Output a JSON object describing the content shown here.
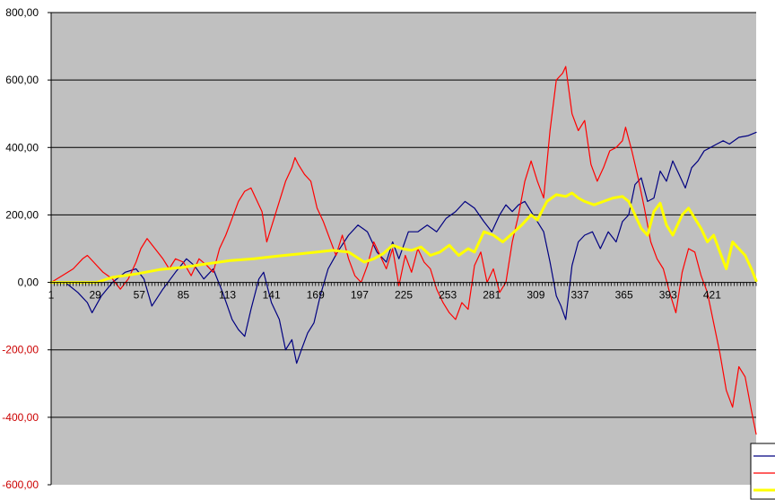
{
  "chart_data": {
    "type": "line",
    "title": "",
    "xlabel": "",
    "ylabel": "",
    "x_range": [
      1,
      449
    ],
    "ylim": [
      -600,
      800
    ],
    "y_ticks": [
      {
        "value": 800,
        "label": "800,00"
      },
      {
        "value": 600,
        "label": "600,00"
      },
      {
        "value": 400,
        "label": "400,00"
      },
      {
        "value": 200,
        "label": "200,00"
      },
      {
        "value": 0,
        "label": "0,00"
      },
      {
        "value": -200,
        "label": "-200,00"
      },
      {
        "value": -400,
        "label": "-400,00"
      },
      {
        "value": -600,
        "label": "-600,00"
      }
    ],
    "x_ticks": [
      {
        "value": 1,
        "label": "1"
      },
      {
        "value": 29,
        "label": "29"
      },
      {
        "value": 57,
        "label": "57"
      },
      {
        "value": 85,
        "label": "85"
      },
      {
        "value": 113,
        "label": "113"
      },
      {
        "value": 141,
        "label": "141"
      },
      {
        "value": 169,
        "label": "169"
      },
      {
        "value": 197,
        "label": "197"
      },
      {
        "value": 225,
        "label": "225"
      },
      {
        "value": 253,
        "label": "253"
      },
      {
        "value": 281,
        "label": "281"
      },
      {
        "value": 309,
        "label": "309"
      },
      {
        "value": 337,
        "label": "337"
      },
      {
        "value": 365,
        "label": "365"
      },
      {
        "value": 393,
        "label": "393"
      },
      {
        "value": 421,
        "label": "421"
      }
    ],
    "grid": "horizontal",
    "legend_position": "bottom-right",
    "colors": {
      "plot_background": "#c0c0c0",
      "gridline": "#000000",
      "positive_tick_label": "#000000",
      "negative_tick_label": "#cc0000"
    },
    "series": [
      {
        "color": "#000080",
        "stroke_width": 1.2,
        "points": [
          [
            1,
            0
          ],
          [
            10,
            0
          ],
          [
            18,
            -30
          ],
          [
            24,
            -60
          ],
          [
            27,
            -90
          ],
          [
            33,
            -40
          ],
          [
            40,
            0
          ],
          [
            48,
            30
          ],
          [
            55,
            40
          ],
          [
            60,
            10
          ],
          [
            65,
            -70
          ],
          [
            72,
            -20
          ],
          [
            80,
            30
          ],
          [
            87,
            70
          ],
          [
            92,
            50
          ],
          [
            98,
            10
          ],
          [
            104,
            40
          ],
          [
            110,
            -30
          ],
          [
            116,
            -110
          ],
          [
            120,
            -140
          ],
          [
            124,
            -160
          ],
          [
            128,
            -80
          ],
          [
            133,
            10
          ],
          [
            136,
            30
          ],
          [
            141,
            -60
          ],
          [
            146,
            -110
          ],
          [
            150,
            -200
          ],
          [
            154,
            -170
          ],
          [
            157,
            -240
          ],
          [
            160,
            -200
          ],
          [
            164,
            -150
          ],
          [
            168,
            -120
          ],
          [
            172,
            -40
          ],
          [
            177,
            40
          ],
          [
            183,
            90
          ],
          [
            190,
            140
          ],
          [
            196,
            170
          ],
          [
            202,
            150
          ],
          [
            208,
            90
          ],
          [
            214,
            60
          ],
          [
            218,
            120
          ],
          [
            222,
            70
          ],
          [
            228,
            150
          ],
          [
            234,
            150
          ],
          [
            240,
            170
          ],
          [
            246,
            150
          ],
          [
            252,
            190
          ],
          [
            258,
            210
          ],
          [
            264,
            240
          ],
          [
            270,
            220
          ],
          [
            276,
            180
          ],
          [
            281,
            150
          ],
          [
            286,
            200
          ],
          [
            290,
            230
          ],
          [
            294,
            210
          ],
          [
            298,
            230
          ],
          [
            302,
            240
          ],
          [
            306,
            210
          ],
          [
            310,
            180
          ],
          [
            314,
            150
          ],
          [
            318,
            60
          ],
          [
            322,
            -40
          ],
          [
            325,
            -70
          ],
          [
            328,
            -110
          ],
          [
            332,
            50
          ],
          [
            336,
            120
          ],
          [
            340,
            140
          ],
          [
            345,
            150
          ],
          [
            350,
            100
          ],
          [
            355,
            150
          ],
          [
            360,
            120
          ],
          [
            364,
            180
          ],
          [
            368,
            200
          ],
          [
            372,
            290
          ],
          [
            376,
            310
          ],
          [
            380,
            240
          ],
          [
            384,
            250
          ],
          [
            388,
            330
          ],
          [
            392,
            300
          ],
          [
            396,
            360
          ],
          [
            400,
            320
          ],
          [
            404,
            280
          ],
          [
            408,
            340
          ],
          [
            412,
            360
          ],
          [
            416,
            390
          ],
          [
            420,
            400
          ],
          [
            424,
            410
          ],
          [
            428,
            420
          ],
          [
            432,
            410
          ],
          [
            438,
            430
          ],
          [
            444,
            435
          ],
          [
            449,
            445
          ]
        ]
      },
      {
        "color": "#ff0000",
        "stroke_width": 1.2,
        "points": [
          [
            1,
            0
          ],
          [
            8,
            20
          ],
          [
            15,
            40
          ],
          [
            21,
            70
          ],
          [
            24,
            80
          ],
          [
            28,
            60
          ],
          [
            34,
            30
          ],
          [
            40,
            10
          ],
          [
            45,
            -20
          ],
          [
            50,
            10
          ],
          [
            55,
            60
          ],
          [
            58,
            100
          ],
          [
            62,
            130
          ],
          [
            67,
            100
          ],
          [
            72,
            70
          ],
          [
            76,
            40
          ],
          [
            80,
            70
          ],
          [
            85,
            60
          ],
          [
            90,
            20
          ],
          [
            95,
            70
          ],
          [
            100,
            50
          ],
          [
            104,
            30
          ],
          [
            108,
            100
          ],
          [
            112,
            140
          ],
          [
            116,
            190
          ],
          [
            120,
            240
          ],
          [
            124,
            270
          ],
          [
            128,
            280
          ],
          [
            132,
            240
          ],
          [
            135,
            210
          ],
          [
            138,
            120
          ],
          [
            142,
            180
          ],
          [
            146,
            240
          ],
          [
            150,
            300
          ],
          [
            154,
            340
          ],
          [
            156,
            370
          ],
          [
            158,
            350
          ],
          [
            162,
            320
          ],
          [
            166,
            300
          ],
          [
            170,
            220
          ],
          [
            174,
            180
          ],
          [
            178,
            130
          ],
          [
            182,
            80
          ],
          [
            186,
            140
          ],
          [
            190,
            70
          ],
          [
            194,
            20
          ],
          [
            198,
            0
          ],
          [
            202,
            50
          ],
          [
            206,
            120
          ],
          [
            210,
            80
          ],
          [
            214,
            40
          ],
          [
            218,
            100
          ],
          [
            222,
            -10
          ],
          [
            226,
            80
          ],
          [
            230,
            30
          ],
          [
            234,
            100
          ],
          [
            238,
            60
          ],
          [
            242,
            40
          ],
          [
            246,
            -20
          ],
          [
            250,
            -60
          ],
          [
            254,
            -90
          ],
          [
            258,
            -110
          ],
          [
            262,
            -60
          ],
          [
            266,
            -80
          ],
          [
            270,
            50
          ],
          [
            274,
            90
          ],
          [
            278,
            0
          ],
          [
            282,
            40
          ],
          [
            286,
            -30
          ],
          [
            290,
            0
          ],
          [
            294,
            120
          ],
          [
            298,
            200
          ],
          [
            302,
            300
          ],
          [
            306,
            360
          ],
          [
            310,
            300
          ],
          [
            314,
            250
          ],
          [
            318,
            450
          ],
          [
            322,
            600
          ],
          [
            326,
            620
          ],
          [
            328,
            640
          ],
          [
            332,
            500
          ],
          [
            336,
            450
          ],
          [
            340,
            480
          ],
          [
            344,
            350
          ],
          [
            348,
            300
          ],
          [
            352,
            340
          ],
          [
            356,
            390
          ],
          [
            360,
            400
          ],
          [
            364,
            420
          ],
          [
            366,
            460
          ],
          [
            370,
            390
          ],
          [
            374,
            310
          ],
          [
            378,
            220
          ],
          [
            382,
            120
          ],
          [
            386,
            70
          ],
          [
            390,
            40
          ],
          [
            394,
            -30
          ],
          [
            398,
            -90
          ],
          [
            402,
            30
          ],
          [
            406,
            100
          ],
          [
            410,
            90
          ],
          [
            414,
            20
          ],
          [
            418,
            -30
          ],
          [
            422,
            -120
          ],
          [
            426,
            -210
          ],
          [
            430,
            -320
          ],
          [
            434,
            -370
          ],
          [
            438,
            -250
          ],
          [
            442,
            -280
          ],
          [
            446,
            -380
          ],
          [
            449,
            -450
          ]
        ]
      },
      {
        "color": "#ffff00",
        "stroke_width": 3,
        "points": [
          [
            1,
            0
          ],
          [
            20,
            0
          ],
          [
            30,
            0
          ],
          [
            40,
            15
          ],
          [
            55,
            25
          ],
          [
            70,
            38
          ],
          [
            85,
            45
          ],
          [
            100,
            55
          ],
          [
            115,
            65
          ],
          [
            130,
            70
          ],
          [
            145,
            78
          ],
          [
            160,
            85
          ],
          [
            170,
            90
          ],
          [
            180,
            95
          ],
          [
            190,
            90
          ],
          [
            195,
            75
          ],
          [
            200,
            60
          ],
          [
            206,
            70
          ],
          [
            212,
            85
          ],
          [
            218,
            110
          ],
          [
            224,
            100
          ],
          [
            230,
            95
          ],
          [
            236,
            105
          ],
          [
            242,
            80
          ],
          [
            248,
            90
          ],
          [
            254,
            110
          ],
          [
            260,
            80
          ],
          [
            266,
            100
          ],
          [
            270,
            90
          ],
          [
            276,
            150
          ],
          [
            282,
            140
          ],
          [
            288,
            120
          ],
          [
            294,
            145
          ],
          [
            300,
            170
          ],
          [
            306,
            200
          ],
          [
            310,
            185
          ],
          [
            316,
            240
          ],
          [
            322,
            260
          ],
          [
            328,
            255
          ],
          [
            332,
            265
          ],
          [
            336,
            250
          ],
          [
            340,
            240
          ],
          [
            346,
            230
          ],
          [
            352,
            240
          ],
          [
            358,
            250
          ],
          [
            364,
            255
          ],
          [
            368,
            240
          ],
          [
            372,
            200
          ],
          [
            376,
            160
          ],
          [
            380,
            140
          ],
          [
            384,
            210
          ],
          [
            388,
            235
          ],
          [
            392,
            170
          ],
          [
            396,
            140
          ],
          [
            402,
            200
          ],
          [
            406,
            220
          ],
          [
            410,
            190
          ],
          [
            414,
            160
          ],
          [
            418,
            120
          ],
          [
            422,
            140
          ],
          [
            426,
            90
          ],
          [
            430,
            40
          ],
          [
            434,
            120
          ],
          [
            438,
            100
          ],
          [
            442,
            80
          ],
          [
            446,
            40
          ],
          [
            449,
            5
          ]
        ]
      }
    ]
  }
}
